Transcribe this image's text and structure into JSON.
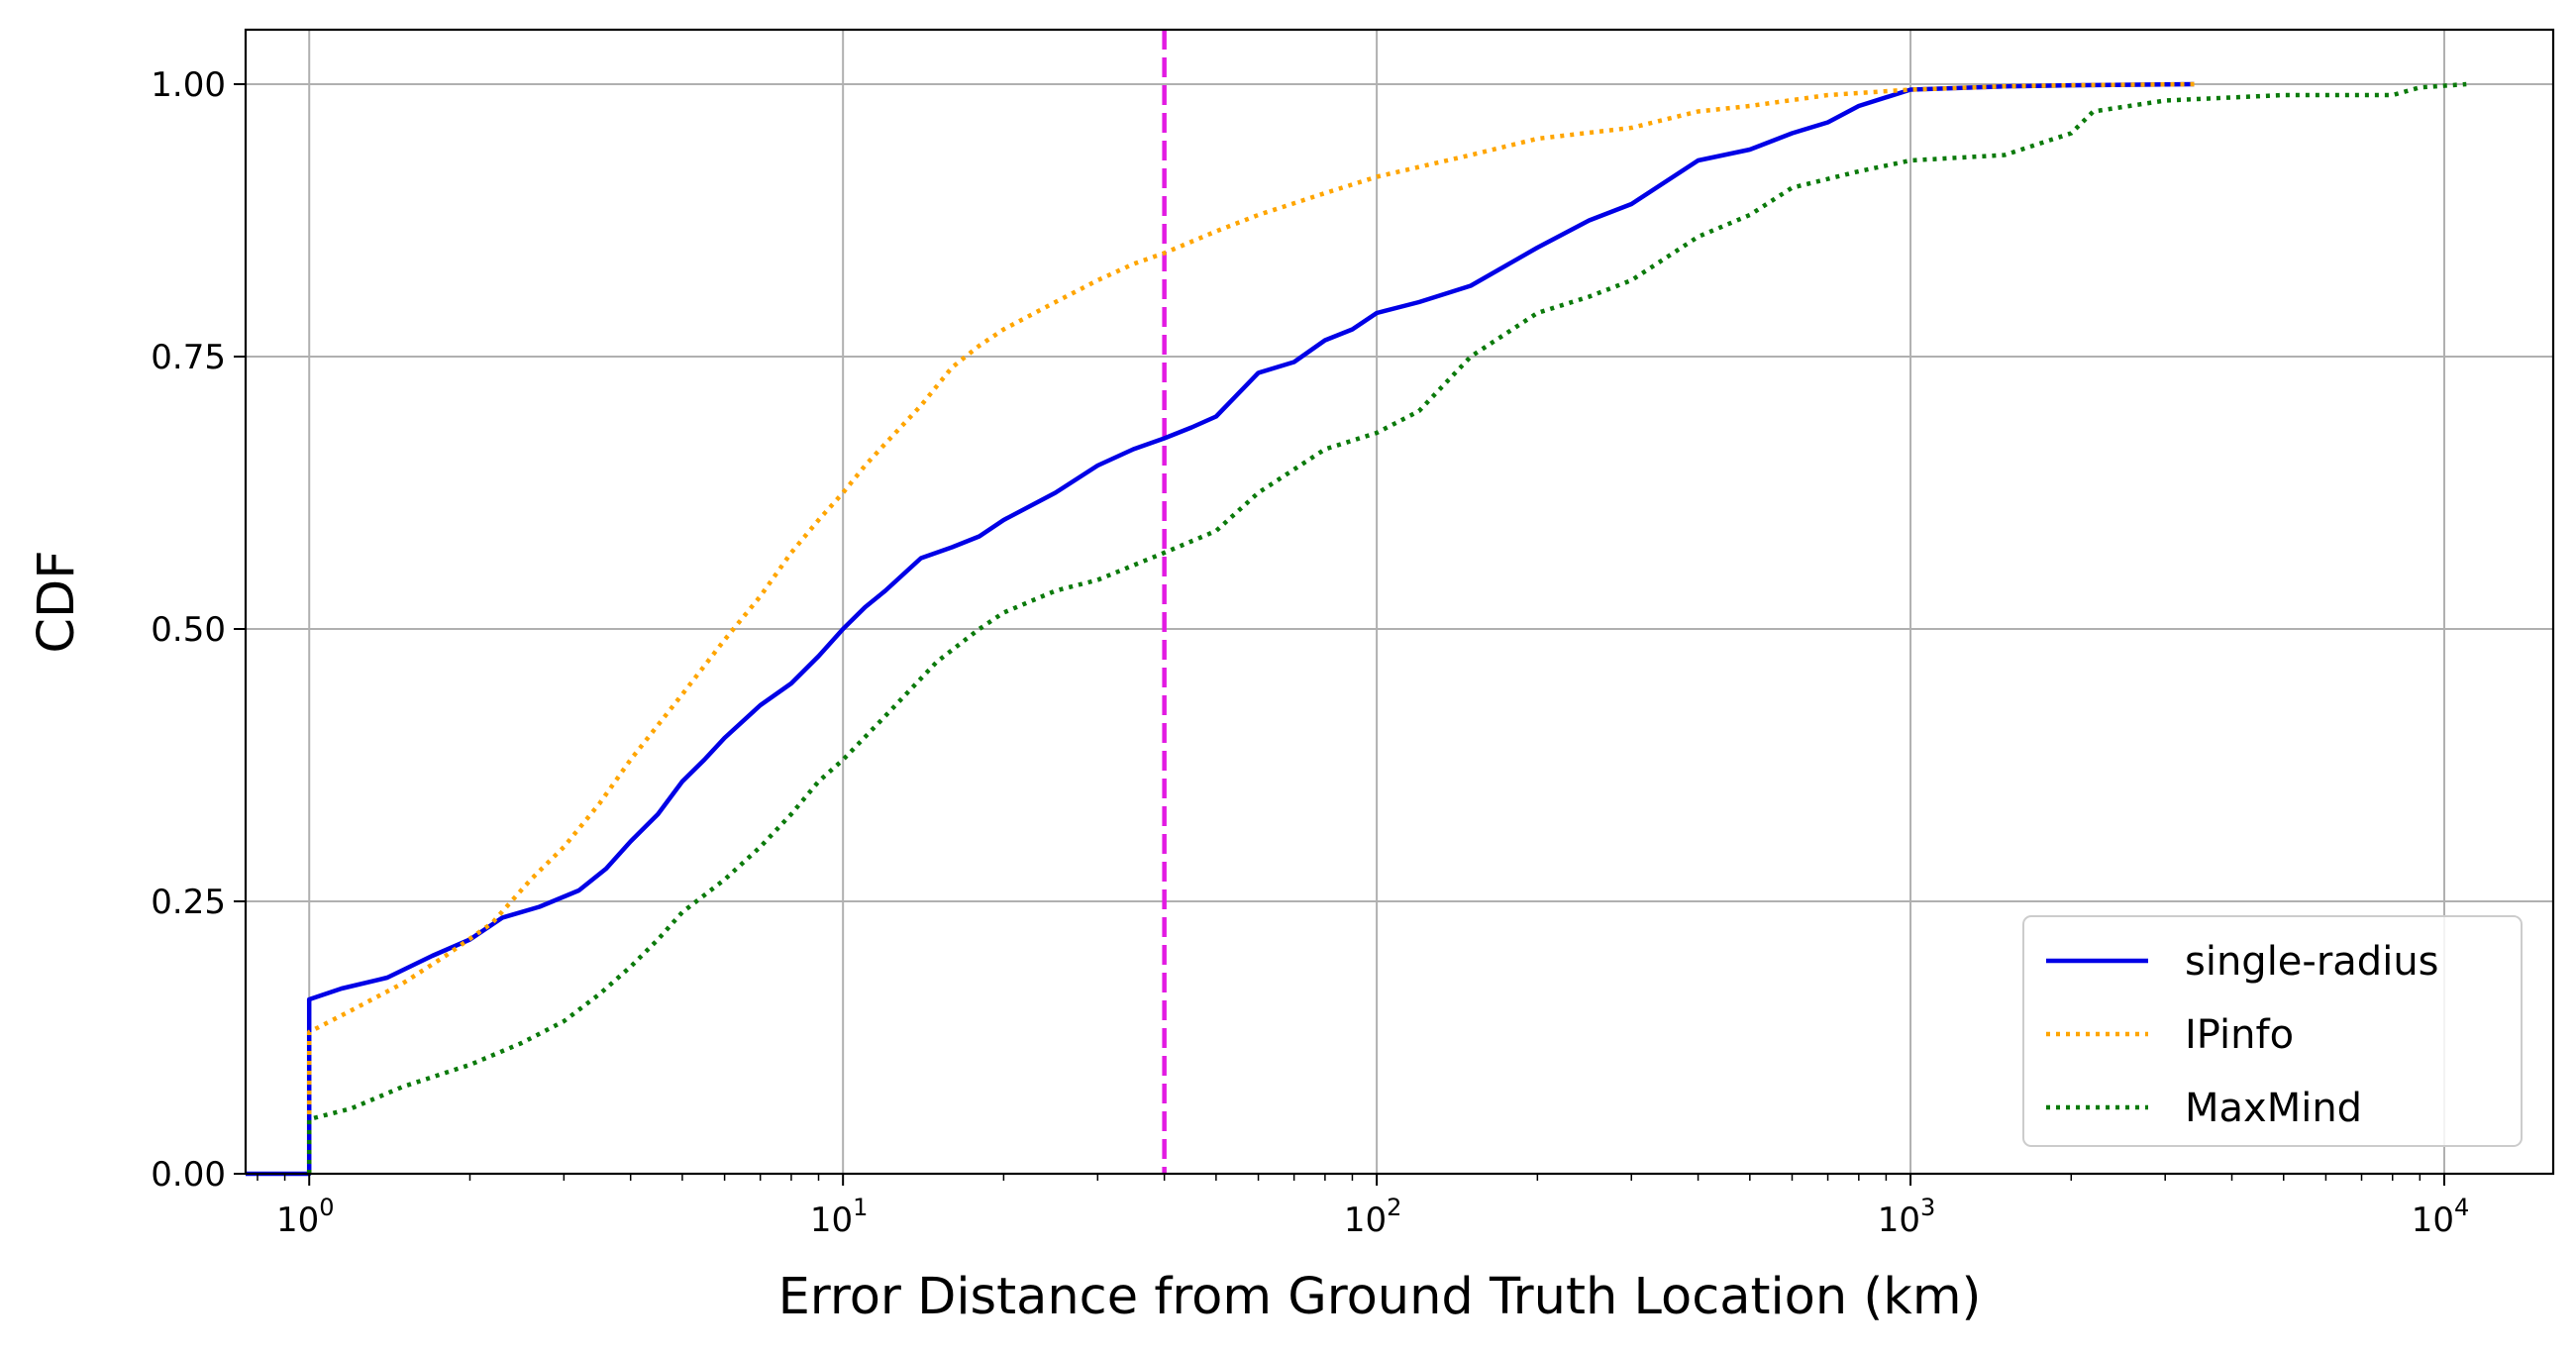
{
  "chart_data": {
    "type": "line",
    "title": "",
    "xlabel": "Error Distance from Ground Truth Location (km)",
    "ylabel": "CDF",
    "x_scale": "log",
    "xlim": [
      0.76,
      16000
    ],
    "ylim": [
      0,
      1.05
    ],
    "x_ticks": [
      {
        "value": 1,
        "base": "10",
        "exp": "0"
      },
      {
        "value": 10,
        "base": "10",
        "exp": "1"
      },
      {
        "value": 100,
        "base": "10",
        "exp": "2"
      },
      {
        "value": 1000,
        "base": "10",
        "exp": "3"
      },
      {
        "value": 10000,
        "base": "10",
        "exp": "4"
      }
    ],
    "y_ticks": [
      {
        "value": 0,
        "label": "0.00"
      },
      {
        "value": 0.25,
        "label": "0.25"
      },
      {
        "value": 0.5,
        "label": "0.50"
      },
      {
        "value": 0.75,
        "label": "0.75"
      },
      {
        "value": 1.0,
        "label": "1.00"
      }
    ],
    "grid": true,
    "legend_position": "lower-right",
    "reference_line": {
      "x": 40,
      "color": "#e21be2",
      "style": "dashed"
    },
    "series": [
      {
        "name": "single-radius",
        "color": "#0000e6",
        "style": "solid",
        "x": [
          0.76,
          1,
          1,
          1.15,
          1.4,
          1.7,
          2,
          2.3,
          2.7,
          3.2,
          3.6,
          4,
          4.5,
          5,
          5.5,
          6,
          7,
          8,
          9,
          10,
          11,
          12,
          14,
          16,
          18,
          20,
          25,
          30,
          35,
          40,
          45,
          50,
          60,
          70,
          80,
          90,
          100,
          120,
          150,
          200,
          250,
          300,
          400,
          500,
          600,
          700,
          800,
          1000,
          1500,
          2000,
          3400
        ],
        "y": [
          0,
          0,
          0.16,
          0.17,
          0.18,
          0.2,
          0.215,
          0.235,
          0.245,
          0.26,
          0.28,
          0.305,
          0.33,
          0.36,
          0.38,
          0.4,
          0.43,
          0.45,
          0.475,
          0.5,
          0.52,
          0.535,
          0.565,
          0.575,
          0.585,
          0.6,
          0.625,
          0.65,
          0.665,
          0.675,
          0.685,
          0.695,
          0.735,
          0.745,
          0.765,
          0.775,
          0.79,
          0.8,
          0.815,
          0.85,
          0.875,
          0.89,
          0.93,
          0.94,
          0.955,
          0.965,
          0.98,
          0.995,
          0.998,
          0.999,
          1.0
        ]
      },
      {
        "name": "IPinfo",
        "color": "#ffa500",
        "style": "dotted",
        "x": [
          1,
          1,
          1.2,
          1.5,
          1.8,
          2.2,
          2.6,
          3,
          3.5,
          4,
          5,
          6,
          7,
          8,
          9,
          10,
          11,
          12,
          14,
          16,
          18,
          20,
          25,
          30,
          35,
          40,
          50,
          60,
          80,
          100,
          150,
          200,
          300,
          400,
          500,
          700,
          1000,
          1500,
          2000,
          3400
        ],
        "y": [
          0,
          0.13,
          0.15,
          0.175,
          0.2,
          0.23,
          0.27,
          0.3,
          0.34,
          0.38,
          0.44,
          0.49,
          0.53,
          0.57,
          0.6,
          0.625,
          0.65,
          0.67,
          0.705,
          0.74,
          0.76,
          0.775,
          0.8,
          0.82,
          0.835,
          0.845,
          0.865,
          0.88,
          0.9,
          0.915,
          0.935,
          0.95,
          0.96,
          0.975,
          0.98,
          0.99,
          0.995,
          0.998,
          0.999,
          1.0
        ]
      },
      {
        "name": "MaxMind",
        "color": "#0b7a0b",
        "style": "dotted",
        "x": [
          1,
          1,
          1.2,
          1.5,
          2,
          2.5,
          3,
          3.5,
          4,
          4.5,
          5,
          6,
          7,
          8,
          9,
          10,
          12,
          15,
          18,
          20,
          25,
          30,
          40,
          50,
          60,
          80,
          100,
          120,
          150,
          200,
          250,
          300,
          400,
          500,
          600,
          800,
          1000,
          1500,
          2000,
          2200,
          3000,
          5000,
          8000,
          9000,
          11000
        ],
        "y": [
          0,
          0.05,
          0.06,
          0.08,
          0.1,
          0.12,
          0.14,
          0.165,
          0.19,
          0.215,
          0.24,
          0.27,
          0.3,
          0.33,
          0.36,
          0.38,
          0.42,
          0.47,
          0.5,
          0.515,
          0.535,
          0.545,
          0.57,
          0.59,
          0.625,
          0.665,
          0.68,
          0.7,
          0.75,
          0.79,
          0.805,
          0.82,
          0.86,
          0.88,
          0.905,
          0.92,
          0.93,
          0.935,
          0.955,
          0.975,
          0.985,
          0.99,
          0.99,
          0.997,
          1.0
        ]
      }
    ]
  }
}
